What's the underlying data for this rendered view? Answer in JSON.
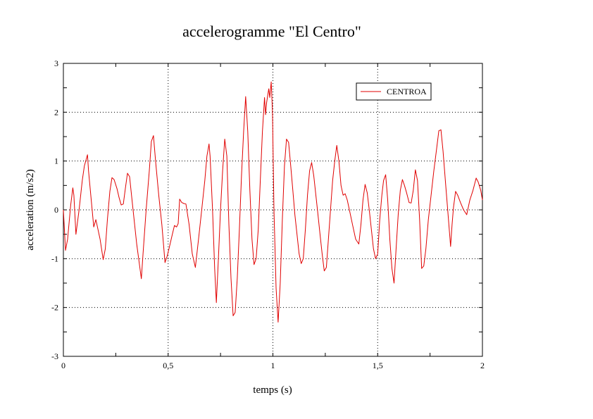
{
  "chart_data": {
    "type": "line",
    "title": "accelerogramme \"El Centro\"",
    "xlabel": "temps (s)",
    "ylabel": "acceleration (m/s2)",
    "xlim": [
      0,
      2
    ],
    "ylim": [
      -3,
      3
    ],
    "x_ticks": [
      0,
      0.5,
      1,
      1.5,
      2
    ],
    "x_tick_labels": [
      "0",
      "0,5",
      "1",
      "1,5",
      "2"
    ],
    "y_ticks": [
      -3,
      -2,
      -1,
      0,
      1,
      2,
      3
    ],
    "y_tick_labels": [
      "-3",
      "-2",
      "-1",
      "0",
      "1",
      "2",
      "3"
    ],
    "grid": true,
    "legend_position": "top-right",
    "series": [
      {
        "name": "CENTROA",
        "color": "#e00000",
        "points": [
          [
            0.0,
            0.0
          ],
          [
            0.01,
            -0.83
          ],
          [
            0.02,
            -0.6
          ],
          [
            0.035,
            0.1
          ],
          [
            0.045,
            0.45
          ],
          [
            0.05,
            0.3
          ],
          [
            0.06,
            -0.5
          ],
          [
            0.075,
            0.0
          ],
          [
            0.09,
            0.6
          ],
          [
            0.1,
            0.9
          ],
          [
            0.115,
            1.13
          ],
          [
            0.12,
            0.8
          ],
          [
            0.135,
            0.1
          ],
          [
            0.145,
            -0.35
          ],
          [
            0.155,
            -0.2
          ],
          [
            0.165,
            -0.4
          ],
          [
            0.175,
            -0.6
          ],
          [
            0.19,
            -1.02
          ],
          [
            0.2,
            -0.8
          ],
          [
            0.21,
            -0.2
          ],
          [
            0.222,
            0.38
          ],
          [
            0.232,
            0.66
          ],
          [
            0.242,
            0.62
          ],
          [
            0.256,
            0.43
          ],
          [
            0.266,
            0.25
          ],
          [
            0.276,
            0.1
          ],
          [
            0.286,
            0.12
          ],
          [
            0.296,
            0.45
          ],
          [
            0.306,
            0.75
          ],
          [
            0.316,
            0.68
          ],
          [
            0.33,
            0.1
          ],
          [
            0.35,
            -0.7
          ],
          [
            0.372,
            -1.41
          ],
          [
            0.38,
            -0.9
          ],
          [
            0.395,
            0.0
          ],
          [
            0.41,
            0.8
          ],
          [
            0.42,
            1.4
          ],
          [
            0.43,
            1.52
          ],
          [
            0.44,
            1.0
          ],
          [
            0.455,
            0.3
          ],
          [
            0.47,
            -0.3
          ],
          [
            0.485,
            -1.08
          ],
          [
            0.495,
            -0.95
          ],
          [
            0.505,
            -0.78
          ],
          [
            0.52,
            -0.5
          ],
          [
            0.53,
            -0.32
          ],
          [
            0.54,
            -0.35
          ],
          [
            0.548,
            -0.28
          ],
          [
            0.555,
            0.22
          ],
          [
            0.565,
            0.15
          ],
          [
            0.575,
            0.13
          ],
          [
            0.585,
            0.12
          ],
          [
            0.6,
            -0.3
          ],
          [
            0.615,
            -0.9
          ],
          [
            0.63,
            -1.18
          ],
          [
            0.645,
            -0.6
          ],
          [
            0.66,
            0.0
          ],
          [
            0.675,
            0.6
          ],
          [
            0.685,
            1.1
          ],
          [
            0.695,
            1.35
          ],
          [
            0.7,
            1.1
          ],
          [
            0.712,
            0.0
          ],
          [
            0.722,
            -1.2
          ],
          [
            0.73,
            -1.9
          ],
          [
            0.74,
            -1.0
          ],
          [
            0.75,
            0.0
          ],
          [
            0.76,
            0.8
          ],
          [
            0.77,
            1.45
          ],
          [
            0.78,
            1.1
          ],
          [
            0.79,
            -0.3
          ],
          [
            0.8,
            -1.4
          ],
          [
            0.81,
            -2.17
          ],
          [
            0.82,
            -2.1
          ],
          [
            0.83,
            -1.4
          ],
          [
            0.84,
            -0.4
          ],
          [
            0.85,
            0.7
          ],
          [
            0.86,
            1.6
          ],
          [
            0.87,
            2.32
          ],
          [
            0.88,
            1.6
          ],
          [
            0.89,
            0.4
          ],
          [
            0.9,
            -0.6
          ],
          [
            0.91,
            -1.12
          ],
          [
            0.92,
            -1.0
          ],
          [
            0.93,
            -0.4
          ],
          [
            0.94,
            0.6
          ],
          [
            0.95,
            1.6
          ],
          [
            0.96,
            2.3
          ],
          [
            0.965,
            1.95
          ],
          [
            0.97,
            2.2
          ],
          [
            0.98,
            2.48
          ],
          [
            0.985,
            2.3
          ],
          [
            0.992,
            2.62
          ],
          [
            0.998,
            2.0
          ],
          [
            1.005,
            0.0
          ],
          [
            1.015,
            -1.6
          ],
          [
            1.025,
            -2.3
          ],
          [
            1.035,
            -1.5
          ],
          [
            1.045,
            -0.2
          ],
          [
            1.055,
            0.9
          ],
          [
            1.065,
            1.45
          ],
          [
            1.075,
            1.38
          ],
          [
            1.085,
            0.9
          ],
          [
            1.095,
            0.4
          ],
          [
            1.105,
            -0.1
          ],
          [
            1.115,
            -0.5
          ],
          [
            1.125,
            -0.9
          ],
          [
            1.135,
            -1.1
          ],
          [
            1.145,
            -1.0
          ],
          [
            1.155,
            -0.4
          ],
          [
            1.165,
            0.3
          ],
          [
            1.175,
            0.8
          ],
          [
            1.185,
            0.97
          ],
          [
            1.195,
            0.7
          ],
          [
            1.205,
            0.3
          ],
          [
            1.215,
            -0.1
          ],
          [
            1.225,
            -0.5
          ],
          [
            1.235,
            -0.9
          ],
          [
            1.245,
            -1.25
          ],
          [
            1.255,
            -1.18
          ],
          [
            1.265,
            -0.6
          ],
          [
            1.275,
            0.0
          ],
          [
            1.285,
            0.6
          ],
          [
            1.295,
            1.0
          ],
          [
            1.305,
            1.32
          ],
          [
            1.315,
            1.0
          ],
          [
            1.325,
            0.5
          ],
          [
            1.335,
            0.3
          ],
          [
            1.345,
            0.33
          ],
          [
            1.355,
            0.2
          ],
          [
            1.365,
            0.0
          ],
          [
            1.38,
            -0.3
          ],
          [
            1.395,
            -0.6
          ],
          [
            1.41,
            -0.7
          ],
          [
            1.42,
            -0.3
          ],
          [
            1.43,
            0.2
          ],
          [
            1.44,
            0.52
          ],
          [
            1.45,
            0.35
          ],
          [
            1.46,
            0.0
          ],
          [
            1.47,
            -0.4
          ],
          [
            1.48,
            -0.8
          ],
          [
            1.49,
            -1.0
          ],
          [
            1.5,
            -0.9
          ],
          [
            1.51,
            -0.2
          ],
          [
            1.52,
            0.3
          ],
          [
            1.528,
            0.6
          ],
          [
            1.538,
            0.72
          ],
          [
            1.548,
            0.2
          ],
          [
            1.558,
            -0.6
          ],
          [
            1.568,
            -1.2
          ],
          [
            1.578,
            -1.5
          ],
          [
            1.588,
            -0.8
          ],
          [
            1.598,
            -0.1
          ],
          [
            1.608,
            0.4
          ],
          [
            1.618,
            0.62
          ],
          [
            1.628,
            0.5
          ],
          [
            1.638,
            0.35
          ],
          [
            1.65,
            0.15
          ],
          [
            1.66,
            0.14
          ],
          [
            1.67,
            0.4
          ],
          [
            1.68,
            0.82
          ],
          [
            1.69,
            0.6
          ],
          [
            1.7,
            -0.2
          ],
          [
            1.71,
            -1.2
          ],
          [
            1.72,
            -1.15
          ],
          [
            1.73,
            -0.8
          ],
          [
            1.742,
            -0.2
          ],
          [
            1.755,
            0.3
          ],
          [
            1.768,
            0.8
          ],
          [
            1.78,
            1.2
          ],
          [
            1.792,
            1.62
          ],
          [
            1.802,
            1.64
          ],
          [
            1.812,
            1.2
          ],
          [
            1.825,
            0.5
          ],
          [
            1.838,
            -0.2
          ],
          [
            1.848,
            -0.75
          ],
          [
            1.855,
            -0.3
          ],
          [
            1.862,
            0.05
          ],
          [
            1.872,
            0.38
          ],
          [
            1.882,
            0.3
          ],
          [
            1.895,
            0.15
          ],
          [
            1.91,
            0.0
          ],
          [
            1.925,
            -0.1
          ],
          [
            1.94,
            0.2
          ],
          [
            1.955,
            0.4
          ],
          [
            1.97,
            0.65
          ],
          [
            1.98,
            0.57
          ],
          [
            1.992,
            0.4
          ],
          [
            2.0,
            0.2
          ]
        ]
      }
    ]
  }
}
